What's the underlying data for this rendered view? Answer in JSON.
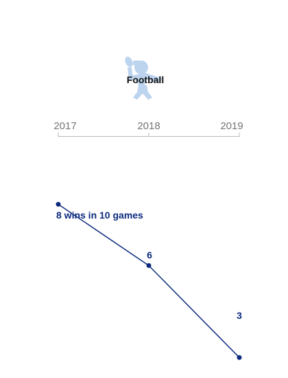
{
  "colors": {
    "line": "#0b2a7e",
    "icon": "#bcd4ee",
    "axis": "#b8b8b8",
    "tick_text": "#757575"
  },
  "icon_name": "football-player-icon",
  "chart_data": {
    "type": "line",
    "title": "Football",
    "categories": [
      "2017",
      "2018",
      "2019"
    ],
    "series": [
      {
        "values": [
          8,
          6,
          3
        ],
        "labels": [
          "8 wins in 10 games",
          "6",
          "3"
        ]
      }
    ],
    "ylim": [
      0,
      10
    ],
    "grid": false,
    "legend": false
  }
}
